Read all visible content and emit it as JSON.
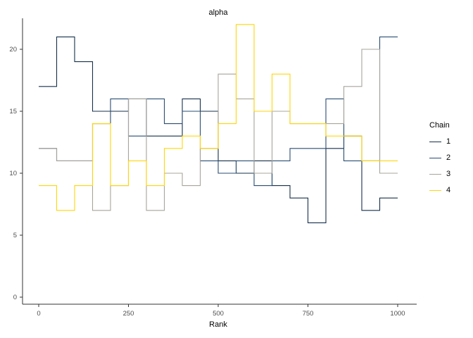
{
  "chart_data": {
    "type": "line",
    "variant": "rank-histogram-step-overlay",
    "title": "alpha",
    "xlabel": "Rank",
    "ylabel": "",
    "xlim": [
      0,
      1000
    ],
    "ylim": [
      0,
      22.5
    ],
    "x_ticks": [
      0,
      250,
      500,
      750,
      1000
    ],
    "y_ticks": [
      0,
      5,
      10,
      15,
      20
    ],
    "bin_width": 50,
    "grid": "off",
    "legend_title": "Chain",
    "legend_position": "right",
    "axis_color": "#333333",
    "tick_label_color": "#4d4d4d",
    "series": [
      {
        "name": "1",
        "color": "#16304c",
        "values": [
          17,
          21,
          19,
          15,
          15,
          16,
          13,
          13,
          16,
          15,
          11,
          10,
          11,
          9,
          8,
          6,
          12,
          13,
          7,
          8
        ]
      },
      {
        "name": "2",
        "color": "#2a4d73",
        "values": [
          12,
          11,
          11,
          14,
          16,
          13,
          16,
          14,
          15,
          11,
          10,
          11,
          9,
          11,
          12,
          12,
          16,
          11,
          11,
          21
        ]
      },
      {
        "name": "3",
        "color": "#a8a49b",
        "values": [
          12,
          11,
          11,
          7,
          9,
          16,
          7,
          10,
          9,
          12,
          18,
          16,
          10,
          15,
          14,
          14,
          14,
          17,
          20,
          10
        ]
      },
      {
        "name": "4",
        "color": "#ffd60a",
        "values": [
          9,
          7,
          9,
          14,
          9,
          11,
          9,
          12,
          13,
          12,
          14,
          22,
          15,
          18,
          14,
          14,
          13,
          13,
          11,
          11
        ]
      }
    ]
  }
}
